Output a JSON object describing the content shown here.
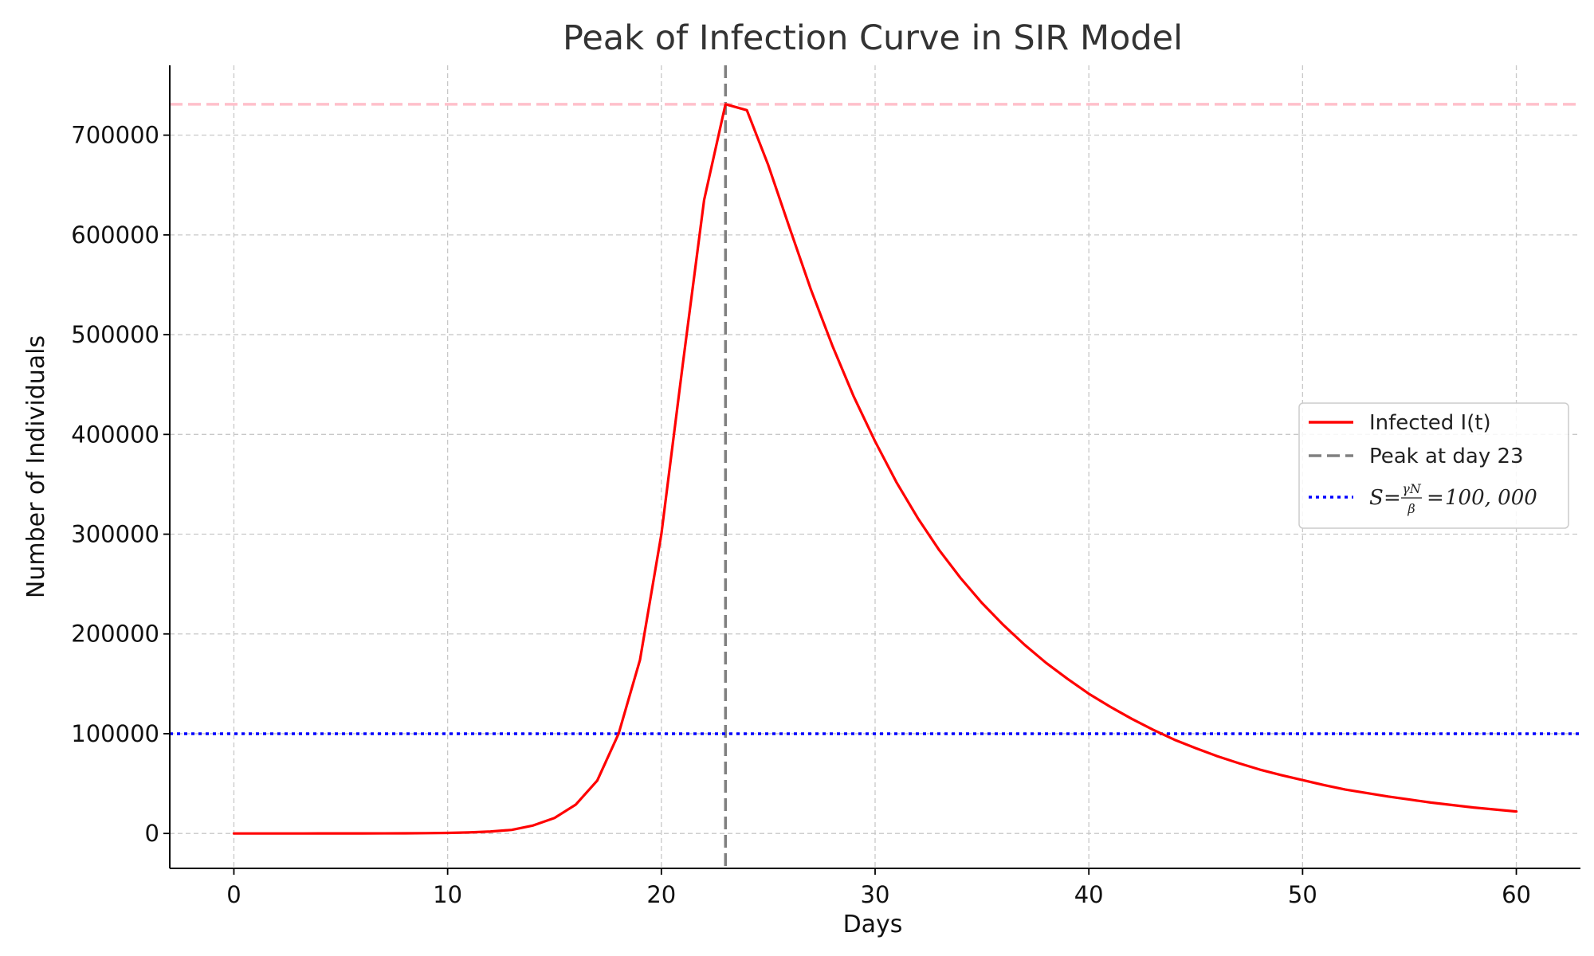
{
  "chart_data": {
    "type": "line",
    "title": "Peak of Infection Curve in SIR Model",
    "xlabel": "Days",
    "ylabel": "Number of Individuals",
    "xlim": [
      -3,
      63
    ],
    "ylim": [
      -35000,
      770000
    ],
    "xticks": [
      0,
      10,
      20,
      30,
      40,
      50,
      60
    ],
    "yticks": [
      0,
      100000,
      200000,
      300000,
      400000,
      500000,
      600000,
      700000
    ],
    "grid": true,
    "legend_position": "center-right",
    "series": [
      {
        "name": "Infected I(t)",
        "color": "#ff0000",
        "style": "solid",
        "x": [
          0,
          1,
          2,
          3,
          4,
          5,
          6,
          7,
          8,
          9,
          10,
          11,
          12,
          13,
          14,
          15,
          16,
          17,
          18,
          19,
          20,
          21,
          22,
          23,
          24,
          25,
          26,
          27,
          28,
          29,
          30,
          31,
          32,
          33,
          34,
          35,
          36,
          37,
          38,
          39,
          40,
          41,
          42,
          43,
          44,
          45,
          46,
          47,
          48,
          49,
          50,
          51,
          52,
          53,
          54,
          55,
          56,
          57,
          58,
          59,
          60
        ],
        "y": [
          1,
          2,
          4,
          7,
          13,
          24,
          45,
          85,
          160,
          300,
          560,
          1050,
          1950,
          3600,
          8000,
          15500,
          29000,
          53000,
          100000,
          174000,
          300000,
          470000,
          635000,
          731000,
          725000,
          670000,
          607000,
          545000,
          489000,
          438000,
          393000,
          352000,
          316000,
          284000,
          256000,
          231000,
          209000,
          189000,
          171000,
          155000,
          140000,
          127000,
          115000,
          104000,
          94000,
          85500,
          77500,
          70500,
          64000,
          58500,
          53500,
          48500,
          44000,
          40500,
          37000,
          34000,
          31000,
          28500,
          26000,
          24000,
          22000
        ]
      }
    ],
    "reference_lines": [
      {
        "name": "Peak at day 23",
        "orientation": "vertical",
        "value": 23,
        "color": "#808080",
        "style": "dashed"
      },
      {
        "name": "S = γN/β = 100,000",
        "orientation": "horizontal",
        "value": 100000,
        "color": "#0000ff",
        "style": "dotted"
      },
      {
        "orientation": "horizontal",
        "value": 731000,
        "color": "#ffc0cb",
        "style": "dashed"
      }
    ],
    "legend": {
      "items": [
        {
          "label": "Infected I(t)",
          "color": "#ff0000",
          "style": "solid"
        },
        {
          "label": "Peak at day 23",
          "color": "#808080",
          "style": "dashed"
        },
        {
          "label_math": {
            "lhs": "S",
            "num": "γN",
            "den": "β",
            "rhs": "100, 000"
          },
          "color": "#0000ff",
          "style": "dotted"
        }
      ]
    }
  }
}
